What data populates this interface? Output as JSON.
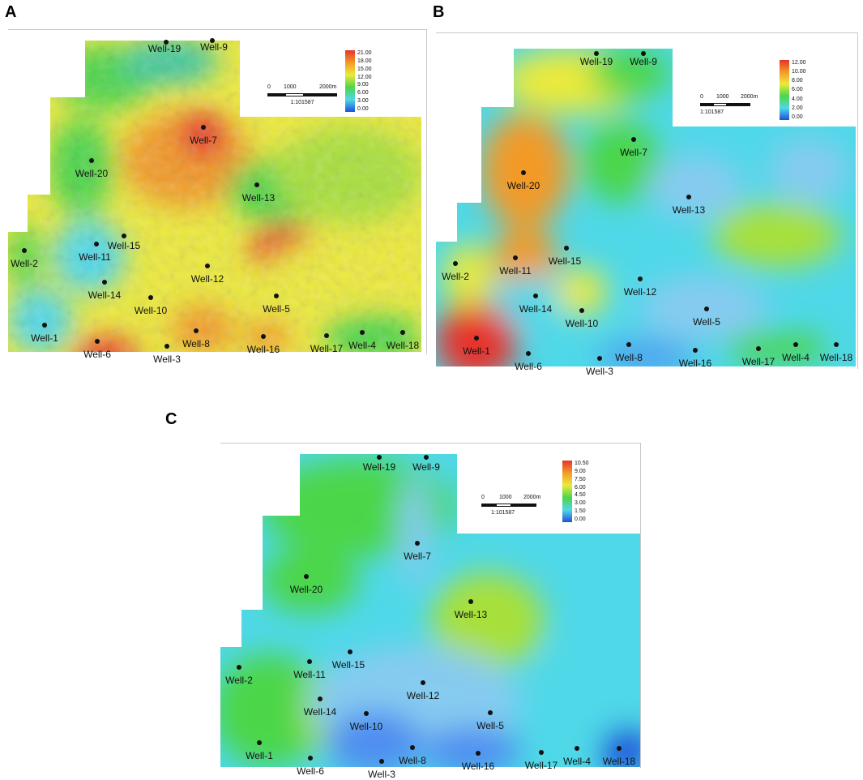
{
  "panels": [
    {
      "letter": "A",
      "legend": {
        "ticks": [
          "21.00",
          "18.00",
          "15.00",
          "12.00",
          "9.00",
          "6.00",
          "3.00",
          "0.00"
        ]
      },
      "scalebar": {
        "labels": [
          "0",
          "1000",
          "2000m"
        ],
        "ratio": "1:101587"
      },
      "wells": [
        {
          "name": "Well-19"
        },
        {
          "name": "Well-9"
        },
        {
          "name": "Well-7"
        },
        {
          "name": "Well-20"
        },
        {
          "name": "Well-13"
        },
        {
          "name": "Well-15"
        },
        {
          "name": "Well-11"
        },
        {
          "name": "Well-2"
        },
        {
          "name": "Well-12"
        },
        {
          "name": "Well-14"
        },
        {
          "name": "Well-10"
        },
        {
          "name": "Well-5"
        },
        {
          "name": "Well-1"
        },
        {
          "name": "Well-6"
        },
        {
          "name": "Well-3"
        },
        {
          "name": "Well-8"
        },
        {
          "name": "Well-16"
        },
        {
          "name": "Well-17"
        },
        {
          "name": "Well-4"
        },
        {
          "name": "Well-18"
        }
      ]
    },
    {
      "letter": "B",
      "legend": {
        "ticks": [
          "12.00",
          "10.00",
          "8.00",
          "6.00",
          "4.00",
          "2.00",
          "0.00"
        ]
      },
      "scalebar": {
        "labels": [
          "0",
          "1000",
          "2000m"
        ],
        "ratio": "1:101587"
      },
      "wells": [
        {
          "name": "Well-19"
        },
        {
          "name": "Well-9"
        },
        {
          "name": "Well-7"
        },
        {
          "name": "Well-20"
        },
        {
          "name": "Well-13"
        },
        {
          "name": "Well-15"
        },
        {
          "name": "Well-11"
        },
        {
          "name": "Well-2"
        },
        {
          "name": "Well-12"
        },
        {
          "name": "Well-14"
        },
        {
          "name": "Well-10"
        },
        {
          "name": "Well-5"
        },
        {
          "name": "Well-1"
        },
        {
          "name": "Well-6"
        },
        {
          "name": "Well-3"
        },
        {
          "name": "Well-8"
        },
        {
          "name": "Well-16"
        },
        {
          "name": "Well-17"
        },
        {
          "name": "Well-4"
        },
        {
          "name": "Well-18"
        }
      ]
    },
    {
      "letter": "C",
      "legend": {
        "ticks": [
          "10.50",
          "9.00",
          "7.50",
          "6.00",
          "4.50",
          "3.00",
          "1.50",
          "0.00"
        ]
      },
      "scalebar": {
        "labels": [
          "0",
          "1000",
          "2000m"
        ],
        "ratio": "1:101587"
      },
      "wells": [
        {
          "name": "Well-19"
        },
        {
          "name": "Well-9"
        },
        {
          "name": "Well-7"
        },
        {
          "name": "Well-20"
        },
        {
          "name": "Well-13"
        },
        {
          "name": "Well-15"
        },
        {
          "name": "Well-11"
        },
        {
          "name": "Well-2"
        },
        {
          "name": "Well-12"
        },
        {
          "name": "Well-14"
        },
        {
          "name": "Well-10"
        },
        {
          "name": "Well-5"
        },
        {
          "name": "Well-1"
        },
        {
          "name": "Well-6"
        },
        {
          "name": "Well-3"
        },
        {
          "name": "Well-8"
        },
        {
          "name": "Well-16"
        },
        {
          "name": "Well-17"
        },
        {
          "name": "Well-4"
        },
        {
          "name": "Well-18"
        }
      ]
    }
  ],
  "colors": {
    "red": "#e8322a",
    "orange": "#f39a26",
    "yellow": "#ecea3a",
    "green": "#4cd64a",
    "cyan": "#4fd8e8",
    "lightblue": "#86cbf0",
    "blue": "#1f50d8"
  }
}
